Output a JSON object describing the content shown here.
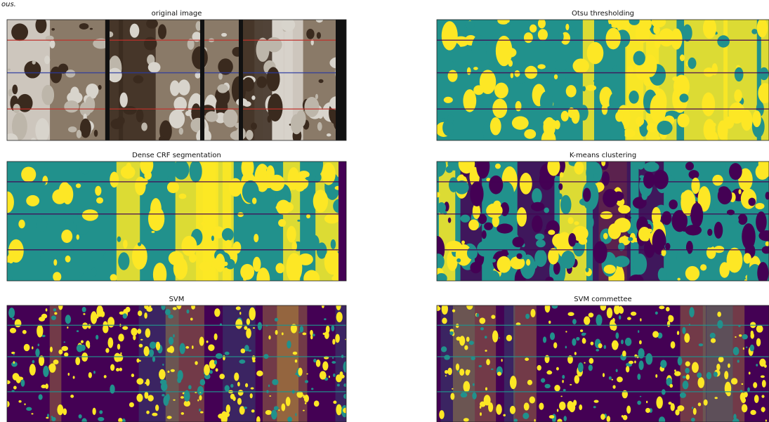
{
  "caption_fragment": "ous.",
  "panels": [
    {
      "title": "original image"
    },
    {
      "title": "Otsu thresholding"
    },
    {
      "title": "Dense CRF segmentation"
    },
    {
      "title": "K-means clustering"
    },
    {
      "title": "SVM"
    },
    {
      "title": "SVM commettee"
    }
  ]
}
